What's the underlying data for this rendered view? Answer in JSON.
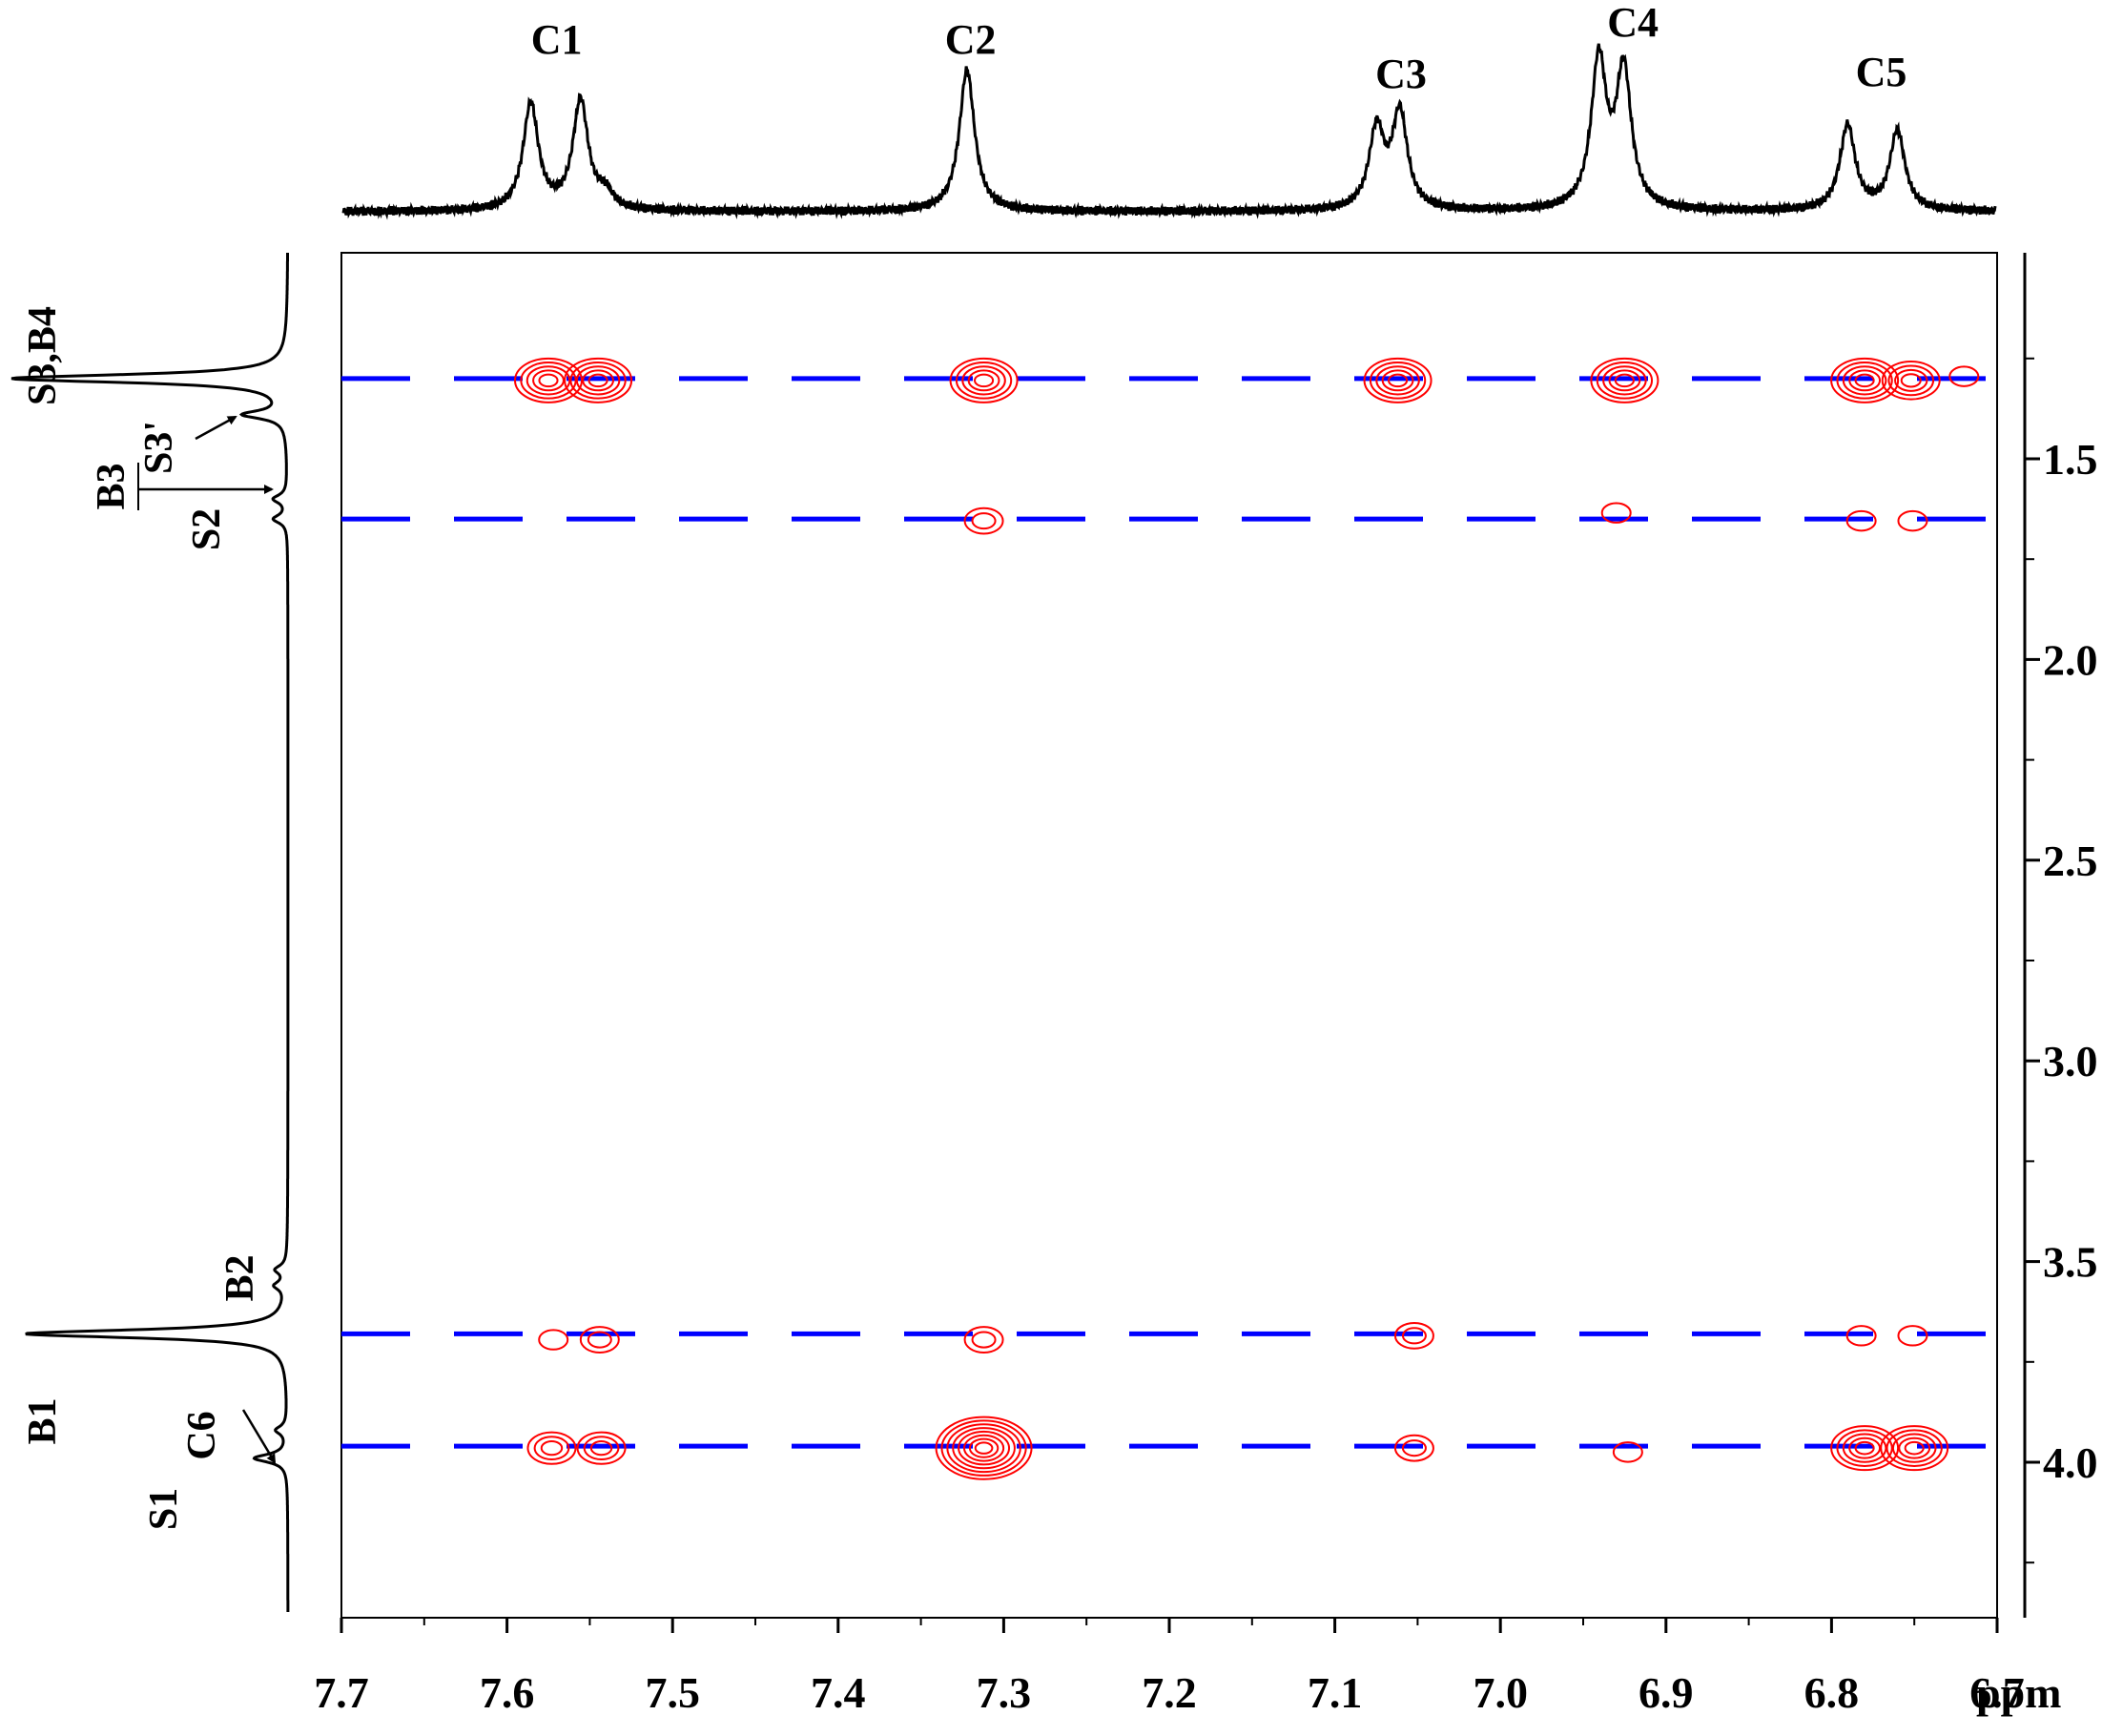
{
  "chart_data": {
    "type": "2d_nmr_noesy_contour",
    "x_axis": {
      "label": "ppm",
      "ticks": [
        7.7,
        7.6,
        7.5,
        7.4,
        7.3,
        7.2,
        7.1,
        7.0,
        6.9,
        6.8,
        6.7
      ],
      "tick_labels": [
        "7.7",
        "7.6",
        "7.5",
        "7.4",
        "7.3",
        "7.2",
        "7.1",
        "7.0",
        "6.9",
        "6.8",
        "6.7"
      ],
      "range": [
        7.7,
        6.7
      ],
      "reversed": true
    },
    "y_axis": {
      "label": "",
      "ticks": [
        1.5,
        2.0,
        2.5,
        3.0,
        3.5,
        4.0
      ],
      "tick_labels": [
        "1.5",
        "2.0",
        "2.5",
        "3.0",
        "3.5",
        "4.0"
      ],
      "range": [
        1.0,
        4.3
      ],
      "reversed": true
    },
    "top_projection": {
      "labels": [
        "C1",
        "C2",
        "C3",
        "C4",
        "C5"
      ],
      "label_ppm": [
        7.57,
        7.32,
        7.06,
        6.92,
        6.77
      ],
      "peaks": [
        {
          "ppm": 7.575,
          "height": 0.7
        },
        {
          "ppm": 7.545,
          "height": 0.72
        },
        {
          "ppm": 7.53,
          "height": 0.1
        },
        {
          "ppm": 7.312,
          "height": 0.93
        },
        {
          "ppm": 7.065,
          "height": 0.52
        },
        {
          "ppm": 7.051,
          "height": 0.63
        },
        {
          "ppm": 6.931,
          "height": 0.97
        },
        {
          "ppm": 6.916,
          "height": 0.9
        },
        {
          "ppm": 6.781,
          "height": 0.56
        },
        {
          "ppm": 6.751,
          "height": 0.52
        }
      ]
    },
    "left_projection": {
      "labels": [
        "S3,B4",
        "S3'",
        "B3",
        "S2",
        "B2",
        "B1",
        "C6",
        "S1"
      ],
      "peaks": [
        {
          "ppm": 1.3,
          "height": 1.0
        },
        {
          "ppm": 1.39,
          "height": 0.15
        },
        {
          "ppm": 1.6,
          "height": 0.05
        },
        {
          "ppm": 1.65,
          "height": 0.05
        },
        {
          "ppm": 3.52,
          "height": 0.04
        },
        {
          "ppm": 3.56,
          "height": 0.04
        },
        {
          "ppm": 3.68,
          "height": 0.95
        },
        {
          "ppm": 3.92,
          "height": 0.04
        },
        {
          "ppm": 3.99,
          "height": 0.12
        }
      ]
    },
    "guide_lines_ppm": [
      1.3,
      1.65,
      3.68,
      3.96
    ],
    "cross_peaks": [
      {
        "x": 7.575,
        "y": 1.3,
        "level": 5
      },
      {
        "x": 7.545,
        "y": 1.3,
        "level": 5
      },
      {
        "x": 7.312,
        "y": 1.3,
        "level": 5
      },
      {
        "x": 7.062,
        "y": 1.3,
        "level": 5
      },
      {
        "x": 6.925,
        "y": 1.3,
        "level": 5
      },
      {
        "x": 6.78,
        "y": 1.3,
        "level": 5
      },
      {
        "x": 6.752,
        "y": 1.3,
        "level": 4
      },
      {
        "x": 6.72,
        "y": 1.29,
        "level": 1
      },
      {
        "x": 7.312,
        "y": 1.65,
        "level": 2
      },
      {
        "x": 6.93,
        "y": 1.63,
        "level": 1
      },
      {
        "x": 6.782,
        "y": 1.65,
        "level": 1
      },
      {
        "x": 6.751,
        "y": 1.65,
        "level": 1
      },
      {
        "x": 7.572,
        "y": 3.69,
        "level": 1
      },
      {
        "x": 7.544,
        "y": 3.69,
        "level": 2
      },
      {
        "x": 7.312,
        "y": 3.69,
        "level": 2
      },
      {
        "x": 7.052,
        "y": 3.68,
        "level": 2
      },
      {
        "x": 6.782,
        "y": 3.68,
        "level": 1
      },
      {
        "x": 6.751,
        "y": 3.68,
        "level": 1
      },
      {
        "x": 7.573,
        "y": 3.96,
        "level": 3
      },
      {
        "x": 7.543,
        "y": 3.96,
        "level": 3
      },
      {
        "x": 7.312,
        "y": 3.96,
        "level": 8
      },
      {
        "x": 7.052,
        "y": 3.96,
        "level": 2
      },
      {
        "x": 6.923,
        "y": 3.97,
        "level": 1
      },
      {
        "x": 6.78,
        "y": 3.96,
        "level": 5
      },
      {
        "x": 6.75,
        "y": 3.96,
        "level": 5
      }
    ],
    "colors": {
      "contour": "#ff0000",
      "guide_lines": "#0000ff",
      "spectrum": "#000000"
    },
    "grid": false
  }
}
